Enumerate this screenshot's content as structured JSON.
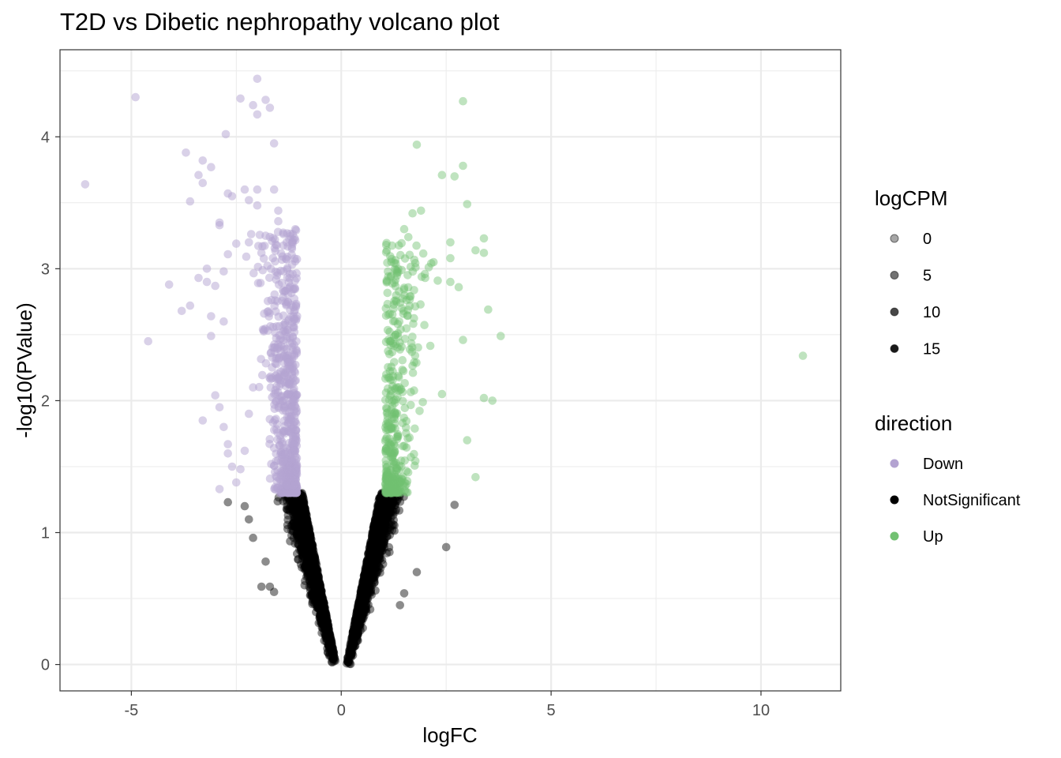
{
  "chart_data": {
    "type": "scatter",
    "title": "T2D vs Dibetic nephropathy volcano plot",
    "xlabel": "logFC",
    "ylabel": "-log10(PValue)",
    "xlim": [
      -6.7,
      11.9
    ],
    "ylim": [
      -0.2,
      4.66
    ],
    "x_ticks": [
      -5,
      0,
      5,
      10
    ],
    "x_tick_labels": [
      "-5",
      "0",
      "5",
      "10"
    ],
    "y_ticks": [
      0,
      1,
      2,
      3,
      4
    ],
    "y_tick_labels": [
      "0",
      "1",
      "2",
      "3",
      "4"
    ],
    "grid": true,
    "legend_position": "right",
    "colors": {
      "Down": "#b3a3d1",
      "NotSignificant": "#000000",
      "Up": "#72c172",
      "grid": "#ebebeb",
      "border": "#333333"
    },
    "legends": {
      "size": {
        "title": "logCPM",
        "items": [
          "0",
          "5",
          "10",
          "15"
        ]
      },
      "color": {
        "title": "direction",
        "items": [
          "Down",
          "NotSignificant",
          "Up"
        ]
      }
    },
    "significance_threshold": 1.3,
    "dense_points_approximate": true,
    "series": [
      {
        "name": "Down",
        "points": [
          [
            -6.1,
            3.64
          ],
          [
            -4.9,
            4.3
          ],
          [
            -4.6,
            2.45
          ],
          [
            -4.1,
            2.88
          ],
          [
            -3.8,
            2.68
          ],
          [
            -3.7,
            3.88
          ],
          [
            -3.6,
            3.51
          ],
          [
            -3.6,
            2.72
          ],
          [
            -3.4,
            2.93
          ],
          [
            -3.4,
            3.71
          ],
          [
            -3.3,
            3.82
          ],
          [
            -3.3,
            3.65
          ],
          [
            -3.2,
            3.0
          ],
          [
            -3.2,
            2.9
          ],
          [
            -3.1,
            2.64
          ],
          [
            -3.1,
            2.49
          ],
          [
            -3.1,
            3.77
          ],
          [
            -3.0,
            2.87
          ],
          [
            -2.9,
            3.35
          ],
          [
            -2.9,
            3.33
          ],
          [
            -2.8,
            2.98
          ],
          [
            -2.8,
            2.6
          ],
          [
            -2.75,
            4.02
          ],
          [
            -2.7,
            3.11
          ],
          [
            -2.7,
            3.57
          ],
          [
            -2.6,
            3.55
          ],
          [
            -2.5,
            3.19
          ],
          [
            -2.4,
            4.29
          ],
          [
            -2.3,
            3.6
          ],
          [
            -2.2,
            3.52
          ],
          [
            -2.2,
            3.2
          ],
          [
            -2.1,
            4.24
          ],
          [
            -2.0,
            4.44
          ],
          [
            -2.0,
            4.17
          ],
          [
            -2.0,
            3.6
          ],
          [
            -2.0,
            3.48
          ],
          [
            -1.9,
            3.12
          ],
          [
            -1.8,
            4.28
          ],
          [
            -1.8,
            3.25
          ],
          [
            -1.7,
            4.22
          ],
          [
            -1.6,
            3.95
          ],
          [
            -1.6,
            3.6
          ],
          [
            -1.5,
            3.44
          ],
          [
            -1.5,
            3.36
          ],
          [
            -1.3,
            3.2
          ],
          [
            -3.0,
            2.04
          ],
          [
            -2.9,
            1.95
          ],
          [
            -2.8,
            1.8
          ],
          [
            -2.7,
            1.6
          ],
          [
            -2.6,
            1.5
          ],
          [
            -2.5,
            1.38
          ],
          [
            -2.4,
            1.48
          ],
          [
            -2.3,
            1.62
          ],
          [
            -2.2,
            1.9
          ],
          [
            -2.1,
            2.1
          ],
          [
            -2.9,
            1.33
          ],
          [
            -2.7,
            1.67
          ],
          [
            -3.3,
            1.85
          ]
        ],
        "approximate_cloud": {
          "points": 650,
          "x_range": [
            -2.6,
            -0.8
          ],
          "y_range": [
            1.3,
            3.4
          ],
          "x_center": -1.35,
          "x_spread": 0.35,
          "note": "dense cluster of non-labelled points read off the figure"
        }
      },
      {
        "name": "NotSignificant",
        "points": [
          [
            -2.7,
            1.23
          ],
          [
            -2.3,
            1.2
          ],
          [
            -2.2,
            1.1
          ],
          [
            -2.1,
            0.96
          ],
          [
            -1.9,
            0.59
          ],
          [
            -1.7,
            0.59
          ],
          [
            -1.8,
            0.78
          ],
          [
            -1.6,
            0.55
          ],
          [
            2.7,
            1.21
          ],
          [
            2.5,
            0.89
          ],
          [
            1.5,
            0.54
          ],
          [
            1.4,
            0.45
          ],
          [
            1.8,
            0.7
          ]
        ],
        "approximate_cloud": {
          "points": 2600,
          "shape": "V",
          "x_range": [
            -1.9,
            1.95
          ],
          "y_range": [
            0,
            1.3
          ],
          "note": "funnel of non-significant genes converging at (0, 0)"
        }
      },
      {
        "name": "Up",
        "points": [
          [
            1.8,
            3.94
          ],
          [
            2.9,
            4.27
          ],
          [
            2.9,
            3.78
          ],
          [
            2.4,
            3.71
          ],
          [
            2.7,
            3.7
          ],
          [
            3.0,
            3.49
          ],
          [
            1.9,
            3.44
          ],
          [
            1.7,
            3.42
          ],
          [
            1.5,
            3.3
          ],
          [
            1.6,
            3.24
          ],
          [
            2.6,
            3.2
          ],
          [
            3.4,
            3.23
          ],
          [
            3.2,
            3.14
          ],
          [
            3.4,
            3.12
          ],
          [
            1.3,
            3.04
          ],
          [
            2.2,
            3.05
          ],
          [
            2.6,
            3.08
          ],
          [
            2.0,
            2.93
          ],
          [
            2.3,
            2.91
          ],
          [
            2.6,
            2.9
          ],
          [
            2.8,
            2.86
          ],
          [
            3.5,
            2.69
          ],
          [
            3.8,
            2.49
          ],
          [
            2.9,
            2.46
          ],
          [
            2.4,
            2.05
          ],
          [
            3.4,
            2.02
          ],
          [
            3.6,
            2.0
          ],
          [
            3.0,
            1.7
          ],
          [
            3.2,
            1.42
          ],
          [
            11.0,
            2.34
          ]
        ],
        "approximate_cloud": {
          "points": 420,
          "x_range": [
            0.8,
            2.6
          ],
          "y_range": [
            1.3,
            3.3
          ],
          "x_center": 1.35,
          "x_spread": 0.35,
          "note": "dense cluster of non-labelled points read off the figure"
        }
      }
    ]
  }
}
